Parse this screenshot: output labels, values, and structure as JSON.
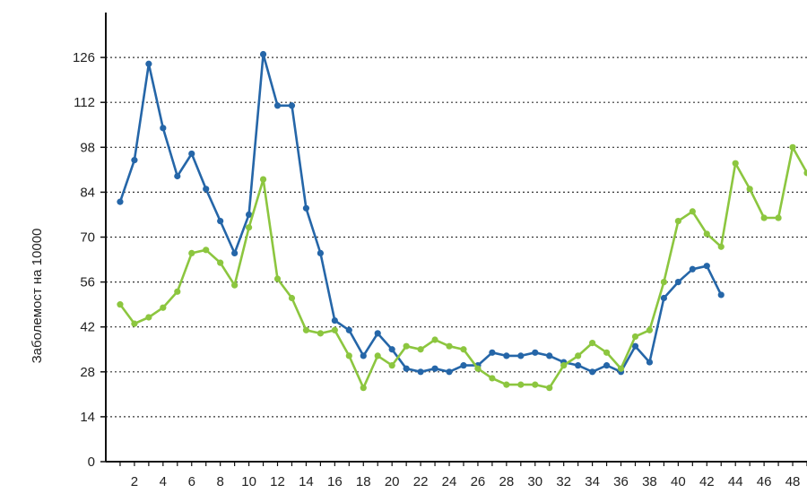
{
  "chart_data": {
    "type": "line",
    "title": "",
    "xlabel": "",
    "ylabel": "Заболемост на 10000",
    "xlim": [
      0,
      49
    ],
    "ylim": [
      0,
      140
    ],
    "x_ticks": [
      2,
      4,
      6,
      8,
      10,
      12,
      14,
      16,
      18,
      20,
      22,
      24,
      26,
      28,
      30,
      32,
      34,
      36,
      38,
      40,
      42,
      44,
      46,
      48
    ],
    "y_ticks": [
      0,
      14,
      28,
      42,
      56,
      70,
      84,
      98,
      112,
      126
    ],
    "grid": {
      "horizontal": true,
      "style": "dotted"
    },
    "legend": "none",
    "series": [
      {
        "color": "#2566a8",
        "x": [
          1,
          2,
          3,
          4,
          5,
          6,
          7,
          8,
          9,
          10,
          11,
          12,
          13,
          14,
          15,
          16,
          17,
          18,
          19,
          20,
          21,
          22,
          23,
          24,
          25,
          26,
          27,
          28,
          29,
          30,
          31,
          32,
          33,
          34,
          35,
          36,
          37,
          38,
          39,
          40,
          41,
          42,
          43
        ],
        "values": [
          81,
          94,
          124,
          104,
          89,
          96,
          85,
          75,
          65,
          77,
          127,
          111,
          111,
          79,
          65,
          44,
          41,
          33,
          40,
          35,
          29,
          28,
          29,
          28,
          30,
          30,
          34,
          33,
          33,
          34,
          33,
          31,
          30,
          28,
          30,
          28,
          36,
          31,
          51,
          56,
          60,
          61,
          52
        ]
      },
      {
        "color": "#8cc63f",
        "x": [
          1,
          2,
          3,
          4,
          5,
          6,
          7,
          8,
          9,
          10,
          11,
          12,
          13,
          14,
          15,
          16,
          17,
          18,
          19,
          20,
          21,
          22,
          23,
          24,
          25,
          26,
          27,
          28,
          29,
          30,
          31,
          32,
          33,
          34,
          35,
          36,
          37,
          38,
          39,
          40,
          41,
          42,
          43,
          44,
          45,
          46,
          47,
          48,
          49
        ],
        "values": [
          49,
          43,
          45,
          48,
          53,
          65,
          66,
          62,
          55,
          73,
          88,
          57,
          51,
          41,
          40,
          41,
          33,
          23,
          33,
          30,
          36,
          35,
          38,
          36,
          35,
          29,
          26,
          24,
          24,
          24,
          23,
          30,
          33,
          37,
          34,
          29,
          39,
          41,
          56,
          75,
          78,
          71,
          67,
          93,
          85,
          76,
          76,
          98,
          90
        ]
      }
    ]
  }
}
